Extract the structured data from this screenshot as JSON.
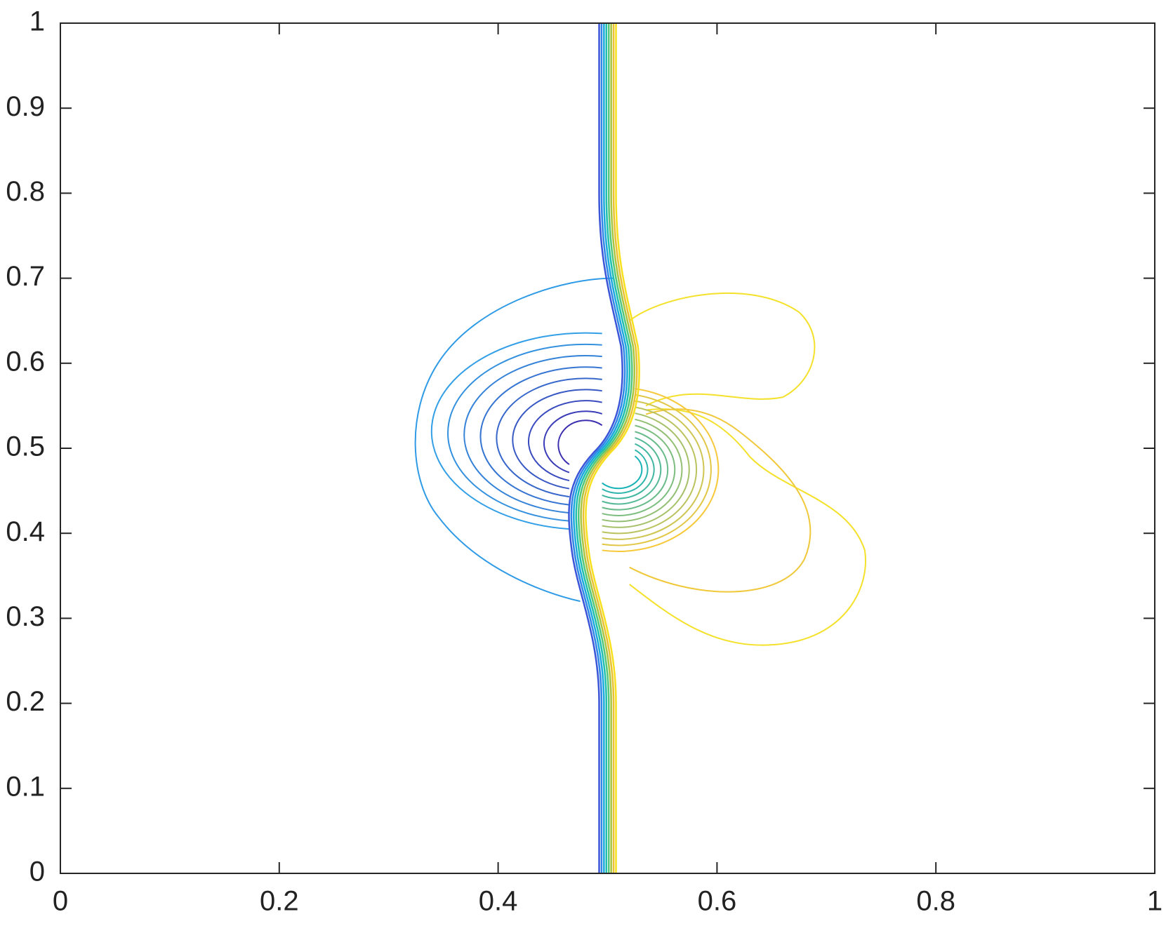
{
  "chart_data": {
    "type": "contour",
    "xlim": [
      0,
      1
    ],
    "ylim": [
      0,
      1
    ],
    "xticks": [
      0,
      0.2,
      0.4,
      0.6,
      0.8,
      1
    ],
    "yticks": [
      0,
      0.1,
      0.2,
      0.3,
      0.4,
      0.5,
      0.6,
      0.7,
      0.8,
      0.9,
      1
    ],
    "grid": false
  }
}
